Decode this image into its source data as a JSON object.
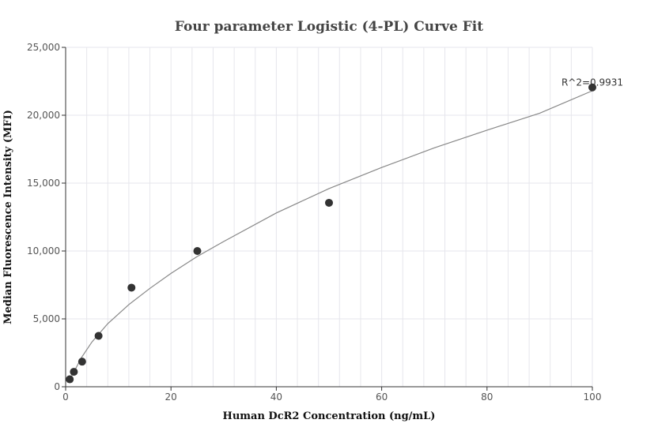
{
  "chart_data": {
    "type": "scatter",
    "title": "Four parameter Logistic (4-PL) Curve Fit",
    "xlabel": "Human DcR2 Concentration (ng/mL)",
    "ylabel": "Median Fluorescence Intensity (MFI)",
    "xlim": [
      0,
      100
    ],
    "ylim": [
      0,
      25000
    ],
    "x_ticks": [
      0,
      20,
      40,
      60,
      80,
      100
    ],
    "y_ticks": [
      0,
      5000,
      10000,
      15000,
      20000,
      25000
    ],
    "x_tick_labels": [
      "0",
      "20",
      "40",
      "60",
      "80",
      "100"
    ],
    "y_tick_labels": [
      "0",
      "5,000",
      "10,000",
      "15,000",
      "20,000",
      "25,000"
    ],
    "grid": true,
    "points": {
      "x": [
        0.78,
        1.56,
        3.13,
        6.25,
        12.5,
        25,
        50,
        100
      ],
      "y": [
        550,
        1100,
        1850,
        3750,
        7300,
        10000,
        13550,
        22050
      ]
    },
    "fit_curve": {
      "x": [
        1,
        2,
        3,
        5,
        8,
        12,
        16,
        20,
        25,
        30,
        40,
        50,
        60,
        70,
        80,
        90,
        100
      ],
      "y": [
        700,
        1400,
        2150,
        3300,
        4650,
        6050,
        7250,
        8350,
        9600,
        10700,
        12800,
        14600,
        16150,
        17600,
        18900,
        20150,
        21800
      ]
    },
    "annotation": "R^2=0.9931",
    "colors": {
      "points": "#333333",
      "curve": "#888888",
      "grid": "#e6e6ec",
      "axis": "#333333"
    }
  }
}
